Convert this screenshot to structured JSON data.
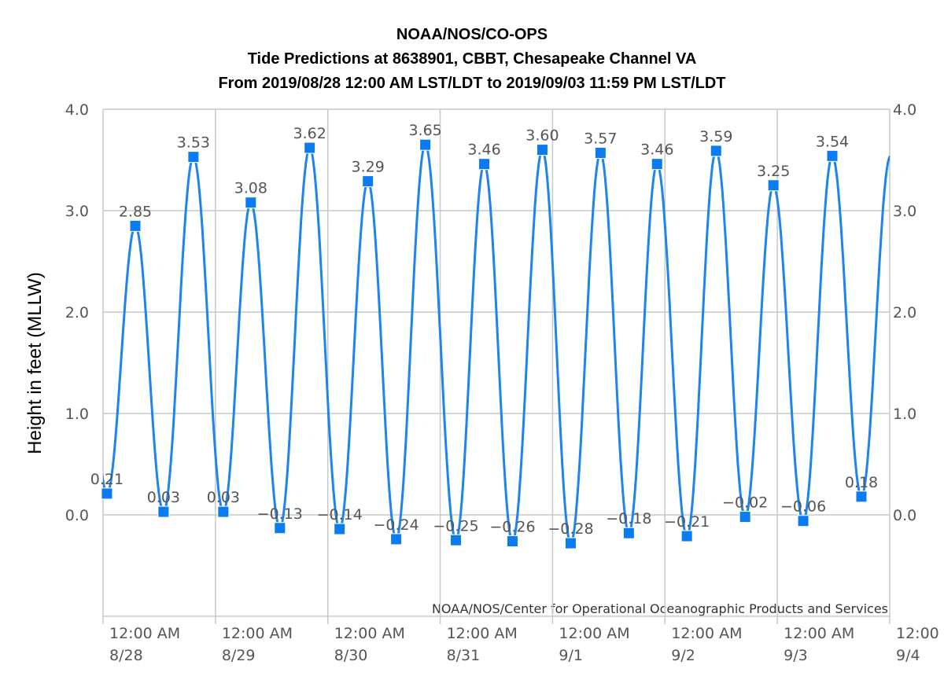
{
  "chart_data": {
    "type": "line",
    "title": [
      "NOAA/NOS/CO-OPS",
      "Tide Predictions at 8638901, CBBT, Chesapeake Channel VA",
      "From 2019/08/28 12:00 AM LST/LDT to 2019/09/03 11:59 PM LST/LDT"
    ],
    "ylabel": "Height in feet (MLLW)",
    "credit": "NOAA/NOS/Center for Operational Oceanographic Products and Services",
    "grid": true,
    "xlim": [
      "2019-08-28T00:00",
      "2019-09-04T00:00"
    ],
    "xticks": [
      {
        "value": "2019-08-28T00:00",
        "label": "12:00 AM\n8/28"
      },
      {
        "value": "2019-08-29T00:00",
        "label": "12:00 AM\n8/29"
      },
      {
        "value": "2019-08-30T00:00",
        "label": "12:00 AM\n8/30"
      },
      {
        "value": "2019-08-31T00:00",
        "label": "12:00 AM\n8/31"
      },
      {
        "value": "2019-09-01T00:00",
        "label": "12:00 AM\n9/1"
      },
      {
        "value": "2019-09-02T00:00",
        "label": "12:00 AM\n9/2"
      },
      {
        "value": "2019-09-03T00:00",
        "label": "12:00 AM\n9/3"
      },
      {
        "value": "2019-09-04T00:00",
        "label": "12:00\n9/4"
      }
    ],
    "ylim": [
      -1,
      4
    ],
    "yticks": [
      {
        "value": 0,
        "label": "0.0"
      },
      {
        "value": 1,
        "label": "1.0"
      },
      {
        "value": 2,
        "label": "2.0"
      },
      {
        "value": 3,
        "label": "3.0"
      },
      {
        "value": 4,
        "label": "4.0"
      }
    ],
    "y2lim": [
      -1,
      4
    ],
    "y2ticks": [
      {
        "value": 0,
        "label": "0.0"
      },
      {
        "value": 1,
        "label": "1.0"
      },
      {
        "value": 2,
        "label": "2.0"
      },
      {
        "value": 3,
        "label": "3.0"
      },
      {
        "value": 4,
        "label": "4.0"
      }
    ],
    "series": [
      {
        "color": "#1f84ec",
        "x": [
          "2019-08-28T00:50",
          "2019-08-28T06:53",
          "2019-08-28T12:55",
          "2019-08-28T19:18",
          "2019-08-29T01:41",
          "2019-08-29T07:33",
          "2019-08-29T13:46",
          "2019-08-29T20:08",
          "2019-08-30T02:31",
          "2019-08-30T08:34",
          "2019-08-30T14:36",
          "2019-08-30T20:49",
          "2019-08-31T03:21",
          "2019-08-31T09:24",
          "2019-08-31T15:26",
          "2019-08-31T21:49",
          "2019-09-01T03:52",
          "2019-09-01T10:14",
          "2019-09-01T16:17",
          "2019-09-01T22:19",
          "2019-09-02T04:41",
          "2019-09-02T10:55",
          "2019-09-02T17:07",
          "2019-09-02T23:10",
          "2019-09-03T05:32",
          "2019-09-03T11:44",
          "2019-09-03T17:57"
        ],
        "values": [
          0.21,
          2.85,
          0.03,
          3.53,
          0.03,
          3.08,
          -0.13,
          3.62,
          -0.14,
          3.29,
          -0.24,
          3.65,
          -0.25,
          3.46,
          -0.26,
          3.6,
          -0.28,
          3.57,
          -0.18,
          3.46,
          -0.21,
          3.59,
          -0.02,
          3.25,
          -0.06,
          3.54,
          0.18
        ],
        "value_labels": [
          "0.21",
          "2.85",
          "0.03",
          "3.53",
          "0.03",
          "3.08",
          "−0.13",
          "3.62",
          "−0.14",
          "3.29",
          "−0.24",
          "3.65",
          "−0.25",
          "3.46",
          "−0.26",
          "3.60",
          "−0.28",
          "3.57",
          "−0.18",
          "3.46",
          "−0.21",
          "3.59",
          "−0.02",
          "3.25",
          "−0.06",
          "3.54",
          "0.18"
        ]
      }
    ]
  }
}
